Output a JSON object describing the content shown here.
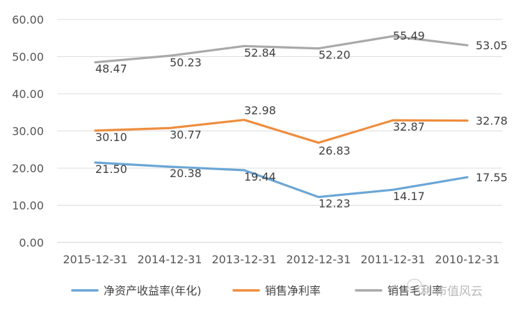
{
  "chart_data": {
    "type": "line",
    "categories": [
      "2015-12-31",
      "2014-12-31",
      "2013-12-31",
      "2012-12-31",
      "2011-12-31",
      "2010-12-31"
    ],
    "series": [
      {
        "name": "净资产收益率(年化)",
        "values": [
          21.5,
          20.38,
          19.44,
          12.23,
          14.17,
          17.55
        ],
        "labels": [
          "21.50",
          "20.38",
          "19.44",
          "12.23",
          "14.17",
          "17.55"
        ],
        "color": "#6aa6d6"
      },
      {
        "name": "销售净利率",
        "values": [
          30.1,
          30.77,
          32.98,
          26.83,
          32.87,
          32.78
        ],
        "labels": [
          "30.10",
          "30.77",
          "32.98",
          "26.83",
          "32.87",
          "32.78"
        ],
        "color": "#ee8d3e"
      },
      {
        "name": "销售毛利率",
        "values": [
          48.47,
          50.23,
          52.84,
          52.2,
          55.49,
          53.05
        ],
        "labels": [
          "48.47",
          "50.23",
          "52.84",
          "52.20",
          "55.49",
          "53.05"
        ],
        "color": "#a9a9a9"
      }
    ],
    "y_ticks": [
      "0.00",
      "10.00",
      "20.00",
      "30.00",
      "40.00",
      "50.00",
      "60.00"
    ],
    "ylim": [
      0,
      60
    ],
    "grid": true,
    "legend_position": "bottom"
  },
  "watermark": {
    "text": "市值风云",
    "icon": "wechat-icon"
  }
}
